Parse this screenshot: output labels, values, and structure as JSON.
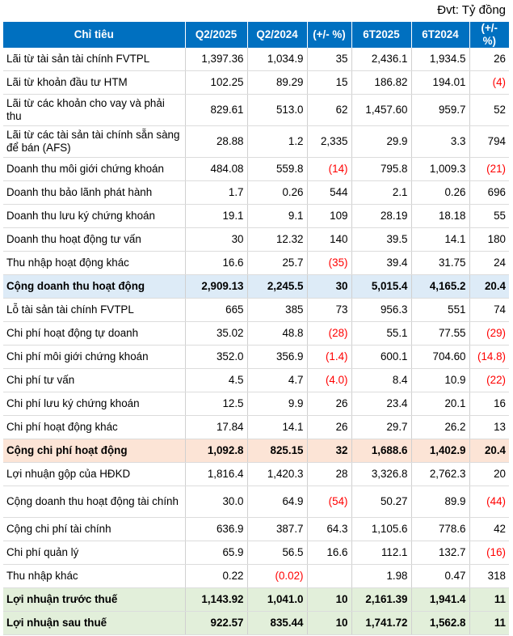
{
  "unit_label": "Đvt: Tỷ đồng",
  "columns": [
    "Chỉ tiêu",
    "Q2/2025",
    "Q2/2024",
    "(+/- %)",
    "6T2025",
    "6T2024",
    "(+/- %)"
  ],
  "rows": [
    {
      "label": "Lãi từ tài sản tài chính FVTPL",
      "v": [
        "1,397.36",
        "1,034.9",
        "35",
        "2,436.1",
        "1,934.5",
        "26"
      ],
      "neg": [],
      "h": 29,
      "style": ""
    },
    {
      "label": "Lãi từ khoản đầu tư HTM",
      "v": [
        "102.25",
        "89.29",
        "15",
        "186.82",
        "194.01",
        "(4)"
      ],
      "neg": [
        5
      ],
      "h": 29,
      "style": ""
    },
    {
      "label": "Lãi từ các khoản cho vay và phải thu",
      "v": [
        "829.61",
        "513.0",
        "62",
        "1,457.60",
        "959.7",
        "52"
      ],
      "neg": [],
      "h": 39,
      "style": ""
    },
    {
      "label": "Lãi từ các tài sản tài chính sẵn sàng để bán (AFS)",
      "v": [
        "28.88",
        "1.2",
        "2,335",
        "29.9",
        "3.3",
        "794"
      ],
      "neg": [],
      "h": 39,
      "style": ""
    },
    {
      "label": "Doanh thu môi giới chứng khoán",
      "v": [
        "484.08",
        "559.8",
        "(14)",
        "795.8",
        "1,009.3",
        "(21)"
      ],
      "neg": [
        2,
        5
      ],
      "h": 29,
      "style": ""
    },
    {
      "label": "Doanh thu bảo lãnh phát hành",
      "v": [
        "1.7",
        "0.26",
        "544",
        "2.1",
        "0.26",
        "696"
      ],
      "neg": [],
      "h": 29,
      "style": ""
    },
    {
      "label": "Doanh thu lưu ký chứng khoán",
      "v": [
        "19.1",
        "9.1",
        "109",
        "28.19",
        "18.18",
        "55"
      ],
      "neg": [],
      "h": 29,
      "style": ""
    },
    {
      "label": "Doanh thu hoạt động tư vấn",
      "v": [
        "30",
        "12.32",
        "140",
        "39.5",
        "14.1",
        "180"
      ],
      "neg": [],
      "h": 29,
      "style": ""
    },
    {
      "label": "Thu nhập hoạt động khác",
      "v": [
        "16.6",
        "25.7",
        "(35)",
        "39.4",
        "31.75",
        "24"
      ],
      "neg": [
        2
      ],
      "h": 29,
      "style": ""
    },
    {
      "label": "Cộng doanh thu hoạt động",
      "v": [
        "2,909.13",
        "2,245.5",
        "30",
        "5,015.4",
        "4,165.2",
        "20.4"
      ],
      "neg": [],
      "h": 29,
      "style": "total-blue"
    },
    {
      "label": "Lỗ tài sản tài chính FVTPL",
      "v": [
        "665",
        "385",
        "73",
        "956.3",
        "551",
        "74"
      ],
      "neg": [],
      "h": 29,
      "style": ""
    },
    {
      "label": "Chi phí hoạt động tự doanh",
      "v": [
        "35.02",
        "48.8",
        "(28)",
        "55.1",
        "77.55",
        "(29)"
      ],
      "neg": [
        2,
        5
      ],
      "h": 29,
      "style": ""
    },
    {
      "label": "Chi phí môi giới chứng khoán",
      "v": [
        "352.0",
        "356.9",
        "(1.4)",
        "600.1",
        "704.60",
        "(14.8)"
      ],
      "neg": [
        2,
        5
      ],
      "h": 29,
      "style": ""
    },
    {
      "label": "Chi phí tư vấn",
      "v": [
        "4.5",
        "4.7",
        "(4.0)",
        "8.4",
        "10.9",
        "(22)"
      ],
      "neg": [
        2,
        5
      ],
      "h": 29,
      "style": ""
    },
    {
      "label": "Chi phí lưu ký chứng khoán",
      "v": [
        "12.5",
        "9.9",
        "26",
        "23.4",
        "20.1",
        "16"
      ],
      "neg": [],
      "h": 29,
      "style": ""
    },
    {
      "label": "Chi phí hoạt động khác",
      "v": [
        "17.84",
        "14.1",
        "26",
        "29.7",
        "26.2",
        "13"
      ],
      "neg": [],
      "h": 29,
      "style": ""
    },
    {
      "label": "Cộng chi phí hoạt động",
      "v": [
        "1,092.8",
        "825.15",
        "32",
        "1,688.6",
        "1,402.9",
        "20.4"
      ],
      "neg": [],
      "h": 29,
      "style": "total-peach"
    },
    {
      "label": "Lợi nhuận gộp của HĐKD",
      "v": [
        "1,816.4",
        "1,420.3",
        "28",
        "3,326.8",
        "2,762.3",
        "20"
      ],
      "neg": [],
      "h": 29,
      "style": ""
    },
    {
      "label": "Cộng doanh thu hoạt động tài chính",
      "v": [
        "30.0",
        "64.9",
        "(54)",
        "50.27",
        "89.9",
        "(44)"
      ],
      "neg": [
        2,
        5
      ],
      "h": 39,
      "style": ""
    },
    {
      "label": "Cộng chi phí tài chính",
      "v": [
        "636.9",
        "387.7",
        "64.3",
        "1,105.6",
        "778.6",
        "42"
      ],
      "neg": [],
      "h": 29,
      "style": ""
    },
    {
      "label": "Chi phí quản lý",
      "v": [
        "65.9",
        "56.5",
        "16.6",
        "112.1",
        "132.7",
        "(16)"
      ],
      "neg": [
        5
      ],
      "h": 29,
      "style": ""
    },
    {
      "label": "Thu nhập khác",
      "v": [
        "0.22",
        "(0.02)",
        "",
        "1.98",
        "0.47",
        "318"
      ],
      "neg": [
        1
      ],
      "h": 29,
      "style": ""
    },
    {
      "label": "Lợi nhuận trước thuế",
      "v": [
        "1,143.92",
        "1,041.0",
        "10",
        "2,161.39",
        "1,941.4",
        "11"
      ],
      "neg": [],
      "h": 29,
      "style": "total-green"
    },
    {
      "label": "Lợi nhuận sau thuế",
      "v": [
        "922.57",
        "835.44",
        "10",
        "1,741.72",
        "1,562.8",
        "11"
      ],
      "neg": [],
      "h": 29,
      "style": "total-green"
    }
  ]
}
